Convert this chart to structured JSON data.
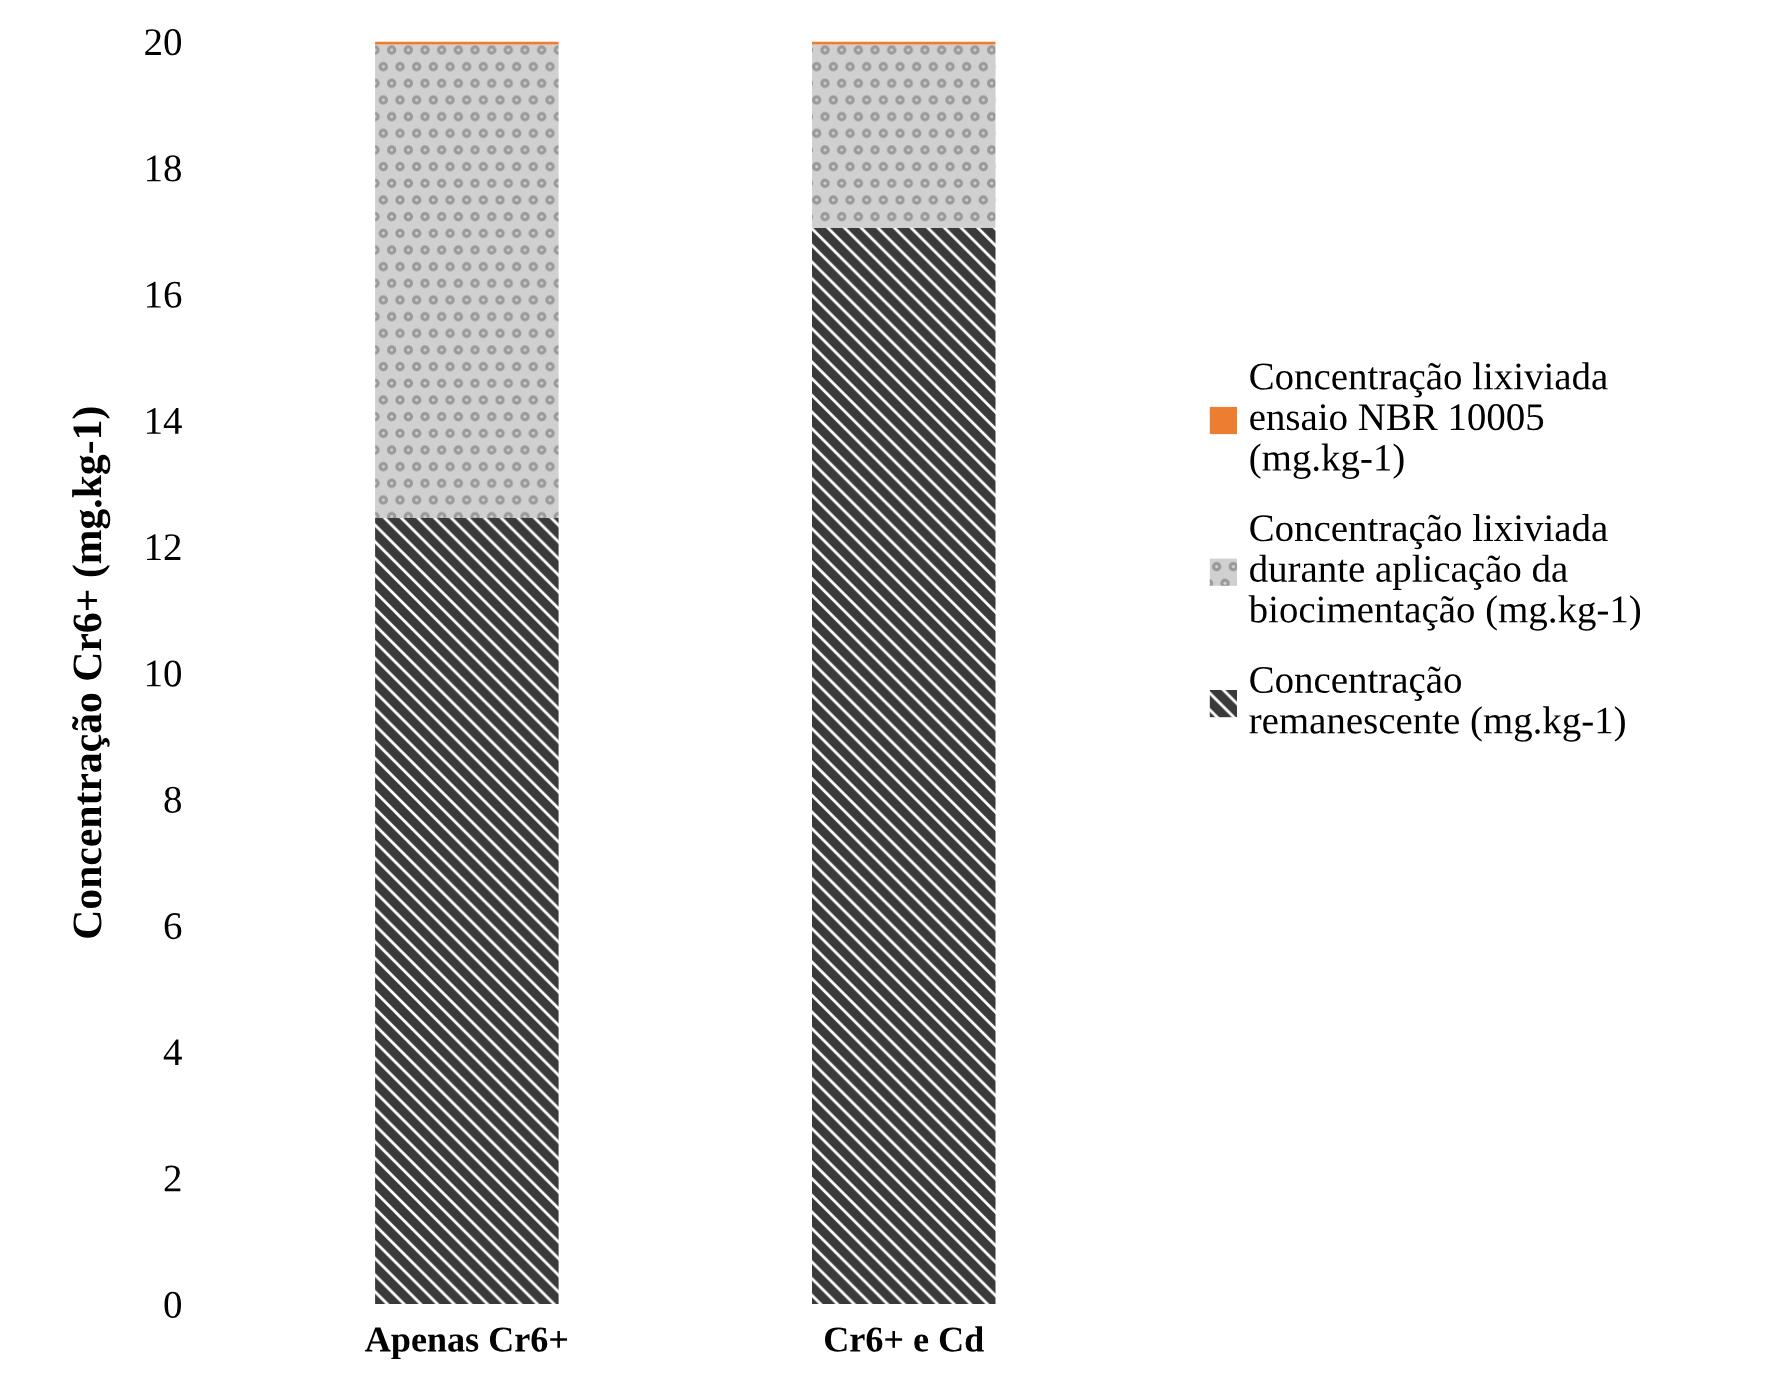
{
  "chart_data": {
    "type": "bar",
    "stacked": true,
    "ylabel": "Concentração Cr6+ (mg.kg-1)",
    "categories": [
      "Apenas Cr6+",
      "Cr6+ e Cd"
    ],
    "series": [
      {
        "name": "Concentração remanescente (mg.kg-1)",
        "color": "#3a3a3a",
        "values": [
          12.45,
          17.05
        ]
      },
      {
        "name": "Concentração lixiviada durante aplicação da biocimentação (mg.kg-1)",
        "color": "#d0d0d0",
        "values": [
          7.5,
          2.9
        ]
      },
      {
        "name": "Concentração lixiviada ensaio NBR 10005 (mg.kg-1)",
        "color": "#ed7d31",
        "values": [
          0.05,
          0.05
        ]
      }
    ],
    "ylim": [
      0,
      20
    ],
    "yticks": [
      0,
      2,
      4,
      6,
      8,
      10,
      12,
      14,
      16,
      18,
      20
    ],
    "grid": false,
    "legend": "right"
  }
}
